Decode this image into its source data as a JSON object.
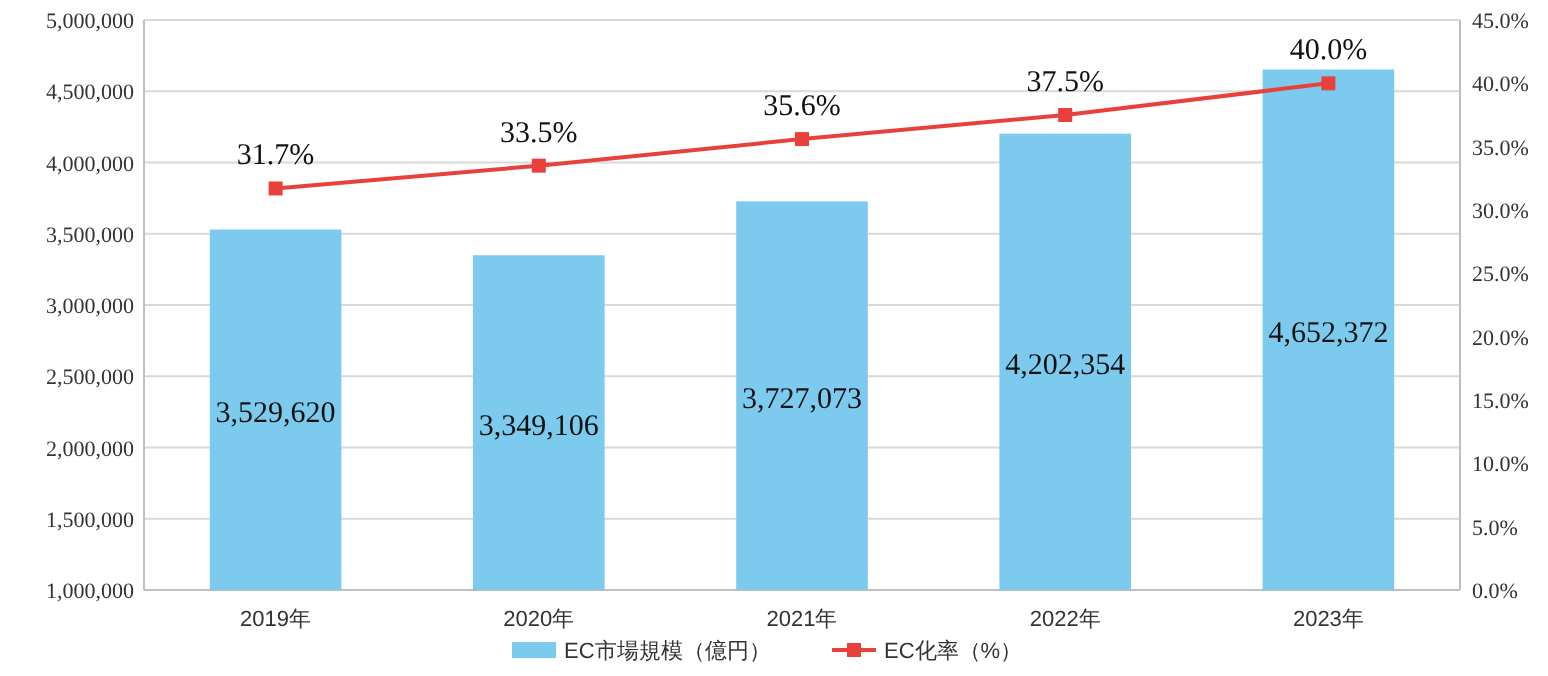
{
  "chart_data": {
    "type": "bar",
    "categories": [
      "2019年",
      "2020年",
      "2021年",
      "2022年",
      "2023年"
    ],
    "series": [
      {
        "name": "EC市場規模（億円）",
        "color": "#7ccbee",
        "values": [
          3529620,
          3349106,
          3727073,
          4202354,
          4652372
        ],
        "value_labels": [
          "3,529,620",
          "3,349,106",
          "3,727,073",
          "4,202,354",
          "4,652,372"
        ]
      },
      {
        "name": "EC化率（%）",
        "type": "line",
        "axis": "y2",
        "color": "#e8413c",
        "marker": "square",
        "line_style": "solid",
        "values": [
          31.7,
          33.5,
          35.6,
          37.5,
          40.0
        ],
        "value_labels": [
          "31.7%",
          "33.5%",
          "35.6%",
          "37.5%",
          "40.0%"
        ]
      }
    ],
    "ylim": [
      1000000,
      5000000
    ],
    "yticks": [
      {
        "value": 1000000,
        "label": "1,000,000"
      },
      {
        "value": 1500000,
        "label": "1,500,000"
      },
      {
        "value": 2000000,
        "label": "2,000,000"
      },
      {
        "value": 2500000,
        "label": "2,500,000"
      },
      {
        "value": 3000000,
        "label": "3,000,000"
      },
      {
        "value": 3500000,
        "label": "3,500,000"
      },
      {
        "value": 4000000,
        "label": "4,000,000"
      },
      {
        "value": 4500000,
        "label": "4,500,000"
      },
      {
        "value": 5000000,
        "label": "5,000,000"
      }
    ],
    "y2lim": [
      0,
      45
    ],
    "y2ticks": [
      {
        "value": 0,
        "label": "0.0%"
      },
      {
        "value": 5,
        "label": "5.0%"
      },
      {
        "value": 10,
        "label": "10.0%"
      },
      {
        "value": 15,
        "label": "15.0%"
      },
      {
        "value": 20,
        "label": "20.0%"
      },
      {
        "value": 25,
        "label": "25.0%"
      },
      {
        "value": 30,
        "label": "30.0%"
      },
      {
        "value": 35,
        "label": "35.0%"
      },
      {
        "value": 40,
        "label": "40.0%"
      },
      {
        "value": 45,
        "label": "45.0%"
      }
    ],
    "grid": "y",
    "legend": "bottom"
  }
}
